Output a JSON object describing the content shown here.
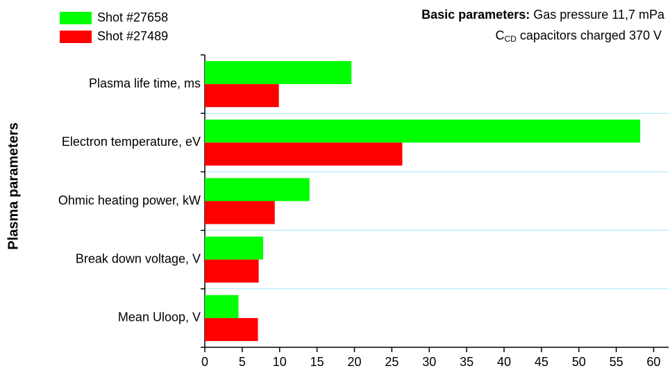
{
  "chart_data": {
    "type": "hbar",
    "title_label": "Basic parameters:",
    "title_line1": "Gas pressure 11,7 mPa",
    "title_line2_symbol": "C",
    "title_line2_subscript": "CD",
    "title_line2_rest": "capacitors charged 370 V",
    "y_axis_label": "Plasma parameters",
    "categories": [
      "Plasma life time, ms",
      "Electron temperature, eV",
      "Ohmic heating power, kW",
      "Break down voltage, V",
      "Mean Uloop, V"
    ],
    "series": [
      {
        "name": "Shot #27658",
        "color": "#00ff00",
        "values": [
          19.6,
          58.2,
          14.0,
          7.8,
          4.5
        ]
      },
      {
        "name": "Shot #27489",
        "color": "#ff0000",
        "values": [
          9.9,
          26.4,
          9.35,
          7.2,
          7.1
        ]
      }
    ],
    "xlim": [
      0,
      62
    ],
    "xticks": [
      0,
      5,
      10,
      15,
      20,
      25,
      30,
      35,
      40,
      45,
      50,
      55,
      60
    ],
    "grid": true,
    "grid_color": "#9fe8f0"
  }
}
